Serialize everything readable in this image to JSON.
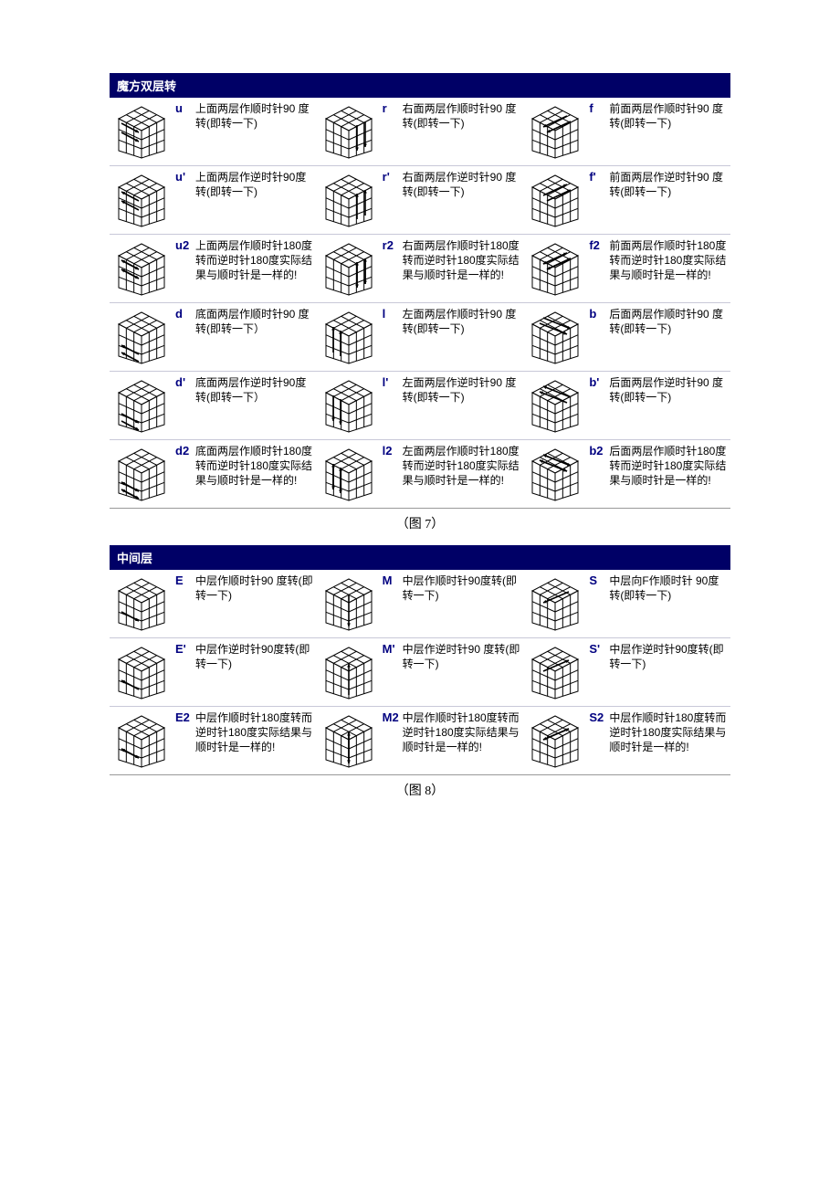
{
  "colors": {
    "header_bg": "#000066",
    "header_text": "#ffffff",
    "symbol": "#000080",
    "rule": "#c8c8d8",
    "cube_stroke": "#000000",
    "cube_fill": "#ffffff"
  },
  "section1": {
    "title": "魔方双层转",
    "caption": "（图 7）",
    "rows": [
      [
        {
          "symbol": "u",
          "desc": "上面两层作顺时针90 度转(即转一下)",
          "orient": "U",
          "dir": "cw"
        },
        {
          "symbol": "r",
          "desc": "右面两层作顺时针90 度转(即转一下)",
          "orient": "R",
          "dir": "cw"
        },
        {
          "symbol": "f",
          "desc": "前面两层作顺时针90 度转(即转一下)",
          "orient": "F",
          "dir": "cw"
        }
      ],
      [
        {
          "symbol": "u'",
          "desc": "上面两层作逆时针90度转(即转一下)",
          "orient": "U",
          "dir": "ccw"
        },
        {
          "symbol": "r'",
          "desc": "右面两层作逆时针90 度转(即转一下)",
          "orient": "R",
          "dir": "ccw"
        },
        {
          "symbol": "f'",
          "desc": "前面两层作逆时针90 度转(即转一下)",
          "orient": "F",
          "dir": "ccw"
        }
      ],
      [
        {
          "symbol": "u2",
          "desc": "上面两层作顺时针180度转而逆时针180度实际结果与顺时针是一样的!",
          "orient": "U",
          "dir": "both"
        },
        {
          "symbol": "r2",
          "desc": "右面两层作顺时针180度转而逆时针180度实际结果与顺时针是一样的!",
          "orient": "R",
          "dir": "both"
        },
        {
          "symbol": "f2",
          "desc": "前面两层作顺时针180度转而逆时针180度实际结果与顺时针是一样的!",
          "orient": "F",
          "dir": "both"
        }
      ],
      [
        {
          "symbol": "d",
          "desc": "底面两层作顺时针90 度转(即转一下）",
          "orient": "D",
          "dir": "cw"
        },
        {
          "symbol": "l",
          "desc": "左面两层作顺时针90 度转(即转一下)",
          "orient": "L",
          "dir": "cw"
        },
        {
          "symbol": "b",
          "desc": "后面两层作顺时针90 度转(即转一下)",
          "orient": "B",
          "dir": "cw"
        }
      ],
      [
        {
          "symbol": "d'",
          "desc": "底面两层作逆时针90度转(即转一下）",
          "orient": "D",
          "dir": "ccw"
        },
        {
          "symbol": "l'",
          "desc": "左面两层作逆时针90 度转(即转一下)",
          "orient": "L",
          "dir": "ccw"
        },
        {
          "symbol": "b'",
          "desc": "后面两层作逆时针90 度转(即转一下)",
          "orient": "B",
          "dir": "ccw"
        }
      ],
      [
        {
          "symbol": "d2",
          "desc": "底面两层作顺时针180度转而逆时针180度实际结果与顺时针是一样的!",
          "orient": "D",
          "dir": "both"
        },
        {
          "symbol": "l2",
          "desc": "左面两层作顺时针180度转而逆时针180度实际结果与顺时针是一样的!",
          "orient": "L",
          "dir": "both"
        },
        {
          "symbol": "b2",
          "desc": "后面两层作顺时针180度转而逆时针180度实际结果与顺时针是一样的!",
          "orient": "B",
          "dir": "both"
        }
      ]
    ]
  },
  "section2": {
    "title": "中间层",
    "caption": "（图 8）",
    "rows": [
      [
        {
          "symbol": "E",
          "desc": "中层作顺时针90 度转(即转一下)",
          "orient": "E",
          "dir": "cw"
        },
        {
          "symbol": "M",
          "desc": "中层作顺时针90度转(即转一下)",
          "orient": "M",
          "dir": "cw"
        },
        {
          "symbol": "S",
          "desc": "中层向F作顺时针 90度转(即转一下)",
          "orient": "S",
          "dir": "cw"
        }
      ],
      [
        {
          "symbol": "E'",
          "desc": "中层作逆时针90度转(即转一下)",
          "orient": "E",
          "dir": "ccw"
        },
        {
          "symbol": "M'",
          "desc": "中层作逆时针90 度转(即转一下)",
          "orient": "M",
          "dir": "ccw"
        },
        {
          "symbol": "S'",
          "desc": "中层作逆时针90度转(即转一下)",
          "orient": "S",
          "dir": "ccw"
        }
      ],
      [
        {
          "symbol": "E2",
          "desc": "中层作顺时针180度转而逆时针180度实际结果与顺时针是一样的!",
          "orient": "E",
          "dir": "both"
        },
        {
          "symbol": "M2",
          "desc": "中层作顺时针180度转而逆时针180度实际结果与顺时针是一样的!",
          "orient": "M",
          "dir": "both"
        },
        {
          "symbol": "S2",
          "desc": "中层作顺时针180度转而逆时针180度实际结果与顺时针是一样的!",
          "orient": "S",
          "dir": "both"
        }
      ]
    ]
  },
  "cube_geometry": {
    "width": 62,
    "height": 62,
    "stroke_width": 1
  }
}
